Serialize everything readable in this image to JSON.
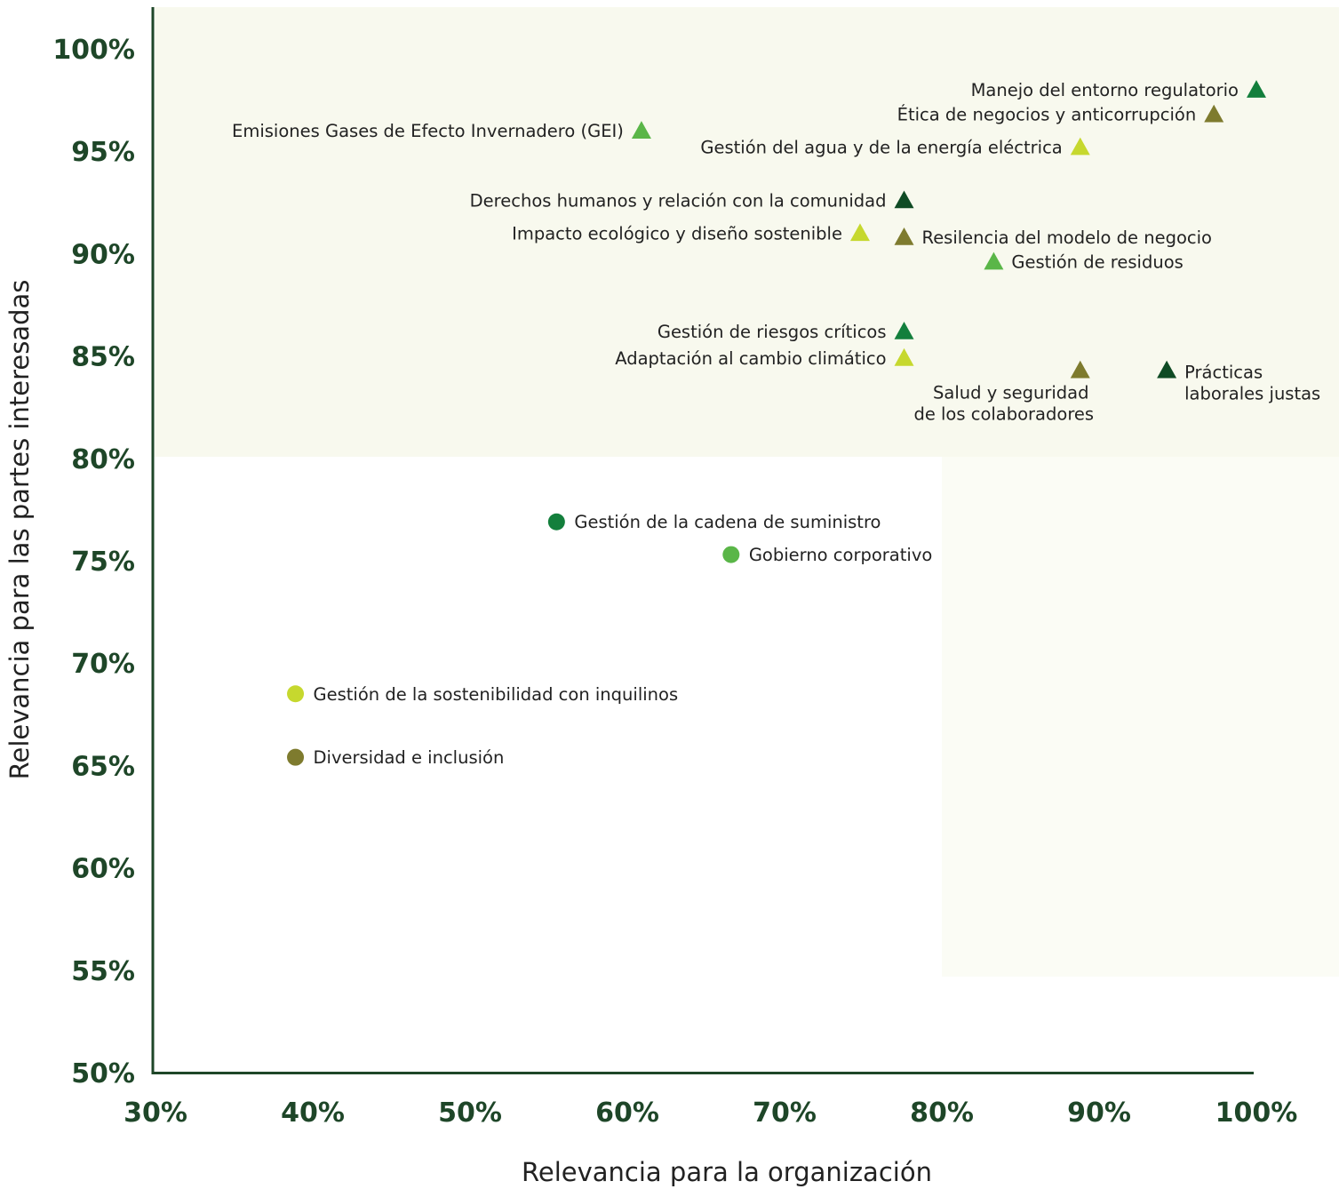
{
  "chart_data": {
    "type": "scatter",
    "xlabel": "Relevancia para la organización",
    "ylabel": "Relevancia para las partes interesadas",
    "xlim": [
      30,
      100
    ],
    "ylim": [
      50,
      100
    ],
    "x_ticks": [
      "30%",
      "40%",
      "50%",
      "60%",
      "70%",
      "80%",
      "90%",
      "100%"
    ],
    "y_ticks": [
      "50%",
      "55%",
      "60%",
      "65%",
      "70%",
      "75%",
      "80%",
      "85%",
      "90%",
      "95%",
      "100%"
    ],
    "grid": false,
    "colors": {
      "dark_green": "#0f4b24",
      "green": "#137f3c",
      "light_green": "#5ab648",
      "lime": "#c6d82e",
      "olive": "#7e7b2e",
      "highlight": "#f8f9ee"
    },
    "points": [
      {
        "label": [
          "Manejo del entorno regulatorio"
        ],
        "x": 100,
        "y": 98,
        "shape": "triangle",
        "color": "#137f3c",
        "label_pos": "left"
      },
      {
        "label": [
          "Ética de negocios y anticorrupción"
        ],
        "x": 97.3,
        "y": 96.8,
        "shape": "triangle",
        "color": "#7e7b2e",
        "label_pos": "left"
      },
      {
        "label": [
          "Emisiones Gases de Efecto Invernadero (GEI)"
        ],
        "x": 60.9,
        "y": 96,
        "shape": "triangle",
        "color": "#5ab648",
        "label_pos": "left"
      },
      {
        "label": [
          "Gestión del agua y de la energía eléctrica"
        ],
        "x": 88.8,
        "y": 95.2,
        "shape": "triangle",
        "color": "#c6d82e",
        "label_pos": "left"
      },
      {
        "label": [
          "Derechos humanos y relación con la comunidad"
        ],
        "x": 77.6,
        "y": 92.6,
        "shape": "triangle",
        "color": "#0f4b24",
        "label_pos": "left"
      },
      {
        "label": [
          "Impacto ecológico y diseño sostenible"
        ],
        "x": 74.8,
        "y": 91,
        "shape": "triangle",
        "color": "#c6d82e",
        "label_pos": "left"
      },
      {
        "label": [
          "Resilencia del modelo de negocio"
        ],
        "x": 77.6,
        "y": 90.8,
        "shape": "triangle",
        "color": "#7e7b2e",
        "label_pos": "right"
      },
      {
        "label": [
          "Gestión de residuos"
        ],
        "x": 83.3,
        "y": 89.6,
        "shape": "triangle",
        "color": "#5ab648",
        "label_pos": "right"
      },
      {
        "label": [
          "Gestión de riesgos críticos"
        ],
        "x": 77.6,
        "y": 86.2,
        "shape": "triangle",
        "color": "#137f3c",
        "label_pos": "left"
      },
      {
        "label": [
          "Adaptación al cambio climático"
        ],
        "x": 77.6,
        "y": 84.9,
        "shape": "triangle",
        "color": "#c6d82e",
        "label_pos": "left"
      },
      {
        "label": [
          "Salud y seguridad",
          "de los colaboradores"
        ],
        "x": 88.8,
        "y": 84.3,
        "shape": "triangle",
        "color": "#7e7b2e",
        "label_pos": "below"
      },
      {
        "label": [
          "Prácticas",
          "laborales justas"
        ],
        "x": 94.3,
        "y": 84.3,
        "shape": "triangle",
        "color": "#0f4b24",
        "label_pos": "right-stack"
      },
      {
        "label": [
          "Gestión de la cadena de suministro"
        ],
        "x": 55.5,
        "y": 76.9,
        "shape": "circle",
        "color": "#137f3c",
        "label_pos": "right"
      },
      {
        "label": [
          "Gobierno corporativo"
        ],
        "x": 66.6,
        "y": 75.3,
        "shape": "circle",
        "color": "#5ab648",
        "label_pos": "right"
      },
      {
        "label": [
          "Gestión de la sostenibilidad con inquilinos"
        ],
        "x": 38.9,
        "y": 68.5,
        "shape": "circle",
        "color": "#c6d82e",
        "label_pos": "right"
      },
      {
        "label": [
          "Diversidad e inclusión"
        ],
        "x": 38.9,
        "y": 65.4,
        "shape": "circle",
        "color": "#7e7b2e",
        "label_pos": "right"
      }
    ]
  }
}
